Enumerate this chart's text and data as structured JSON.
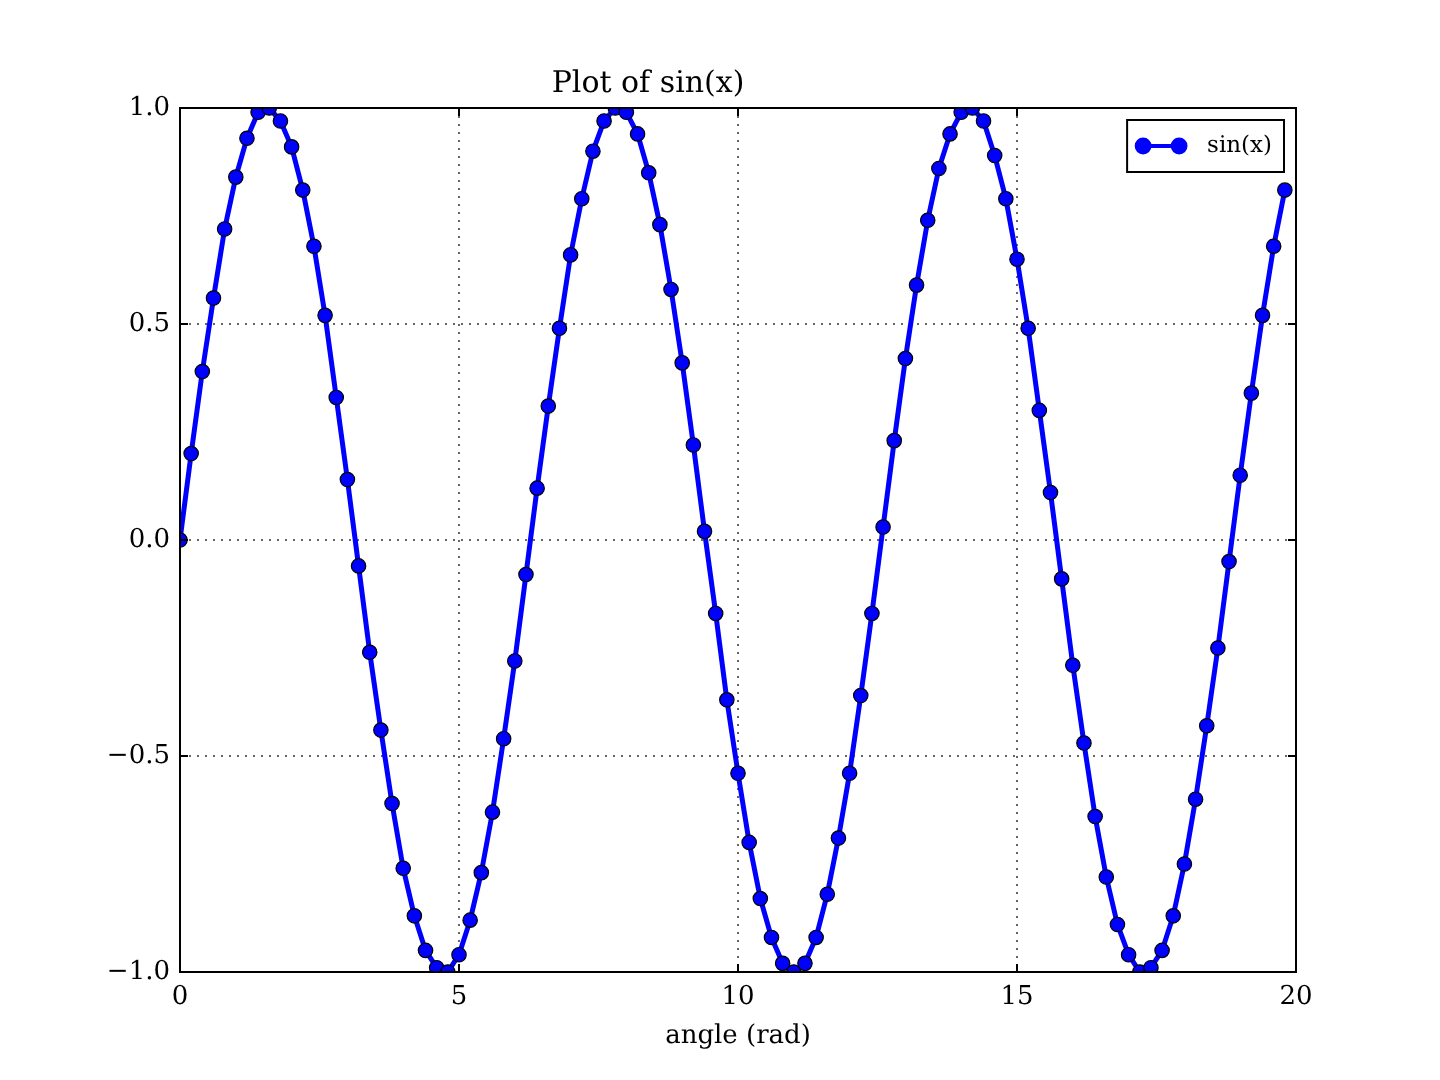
{
  "chart_data": {
    "type": "line",
    "title": "Plot of sin(x)",
    "xlabel": "angle (rad)",
    "x": [
      0,
      0.2,
      0.4,
      0.6,
      0.8,
      1,
      1.2,
      1.4,
      1.6,
      1.8,
      2,
      2.2,
      2.4,
      2.6,
      2.8,
      3,
      3.2,
      3.4,
      3.6,
      3.8,
      4,
      4.2,
      4.4,
      4.6,
      4.8,
      5,
      5.2,
      5.4,
      5.6,
      5.8,
      6,
      6.2,
      6.4,
      6.6,
      6.8,
      7,
      7.2,
      7.4,
      7.6,
      7.8,
      8,
      8.2,
      8.4,
      8.6,
      8.8,
      9,
      9.2,
      9.4,
      9.6,
      9.8,
      10,
      10.2,
      10.4,
      10.6,
      10.8,
      11,
      11.2,
      11.4,
      11.6,
      11.8,
      12,
      12.2,
      12.4,
      12.6,
      12.8,
      13,
      13.2,
      13.4,
      13.6,
      13.8,
      14,
      14.2,
      14.4,
      14.6,
      14.8,
      15,
      15.2,
      15.4,
      15.6,
      15.8,
      16,
      16.2,
      16.4,
      16.6,
      16.8,
      17,
      17.2,
      17.4,
      17.6,
      17.8,
      18,
      18.2,
      18.4,
      18.6,
      18.8,
      19,
      19.2,
      19.4,
      19.6,
      19.8
    ],
    "series": [
      {
        "name": "sin(x)",
        "color": "#0000ff",
        "values": [
          0,
          0.2,
          0.39,
          0.56,
          0.72,
          0.84,
          0.93,
          0.99,
          1,
          0.97,
          0.91,
          0.81,
          0.68,
          0.52,
          0.33,
          0.14,
          -0.06,
          -0.26,
          -0.44,
          -0.61,
          -0.76,
          -0.87,
          -0.95,
          -0.99,
          -1,
          -0.96,
          -0.88,
          -0.77,
          -0.63,
          -0.46,
          -0.28,
          -0.08,
          0.12,
          0.31,
          0.49,
          0.66,
          0.79,
          0.9,
          0.97,
          1,
          0.99,
          0.94,
          0.85,
          0.73,
          0.58,
          0.41,
          0.22,
          0.02,
          -0.17,
          -0.37,
          -0.54,
          -0.7,
          -0.83,
          -0.92,
          -0.98,
          -1,
          -0.98,
          -0.92,
          -0.82,
          -0.69,
          -0.54,
          -0.36,
          -0.17,
          0.03,
          0.23,
          0.42,
          0.59,
          0.74,
          0.86,
          0.94,
          0.99,
          1,
          0.97,
          0.89,
          0.79,
          0.65,
          0.49,
          0.3,
          0.11,
          -0.09,
          -0.29,
          -0.47,
          -0.64,
          -0.78,
          -0.89,
          -0.96,
          -1,
          -0.99,
          -0.95,
          -0.87,
          -0.75,
          -0.6,
          -0.43,
          -0.25,
          -0.05,
          0.15,
          0.34,
          0.52,
          0.68,
          0.81
        ]
      }
    ],
    "xlim": [
      0,
      20
    ],
    "xticks": [
      0,
      5,
      10,
      15,
      20
    ],
    "ylim": [
      -1,
      1
    ],
    "yticks": [
      {
        "value": -1,
        "label": "−1.0"
      },
      {
        "value": -0.5,
        "label": "−0.5"
      },
      {
        "value": 0,
        "label": "0.0"
      },
      {
        "value": 0.5,
        "label": "0.5"
      },
      {
        "value": 1,
        "label": "1.0"
      }
    ],
    "grid": true,
    "legend": "top right",
    "marker": "circle",
    "line_style": "solid"
  }
}
